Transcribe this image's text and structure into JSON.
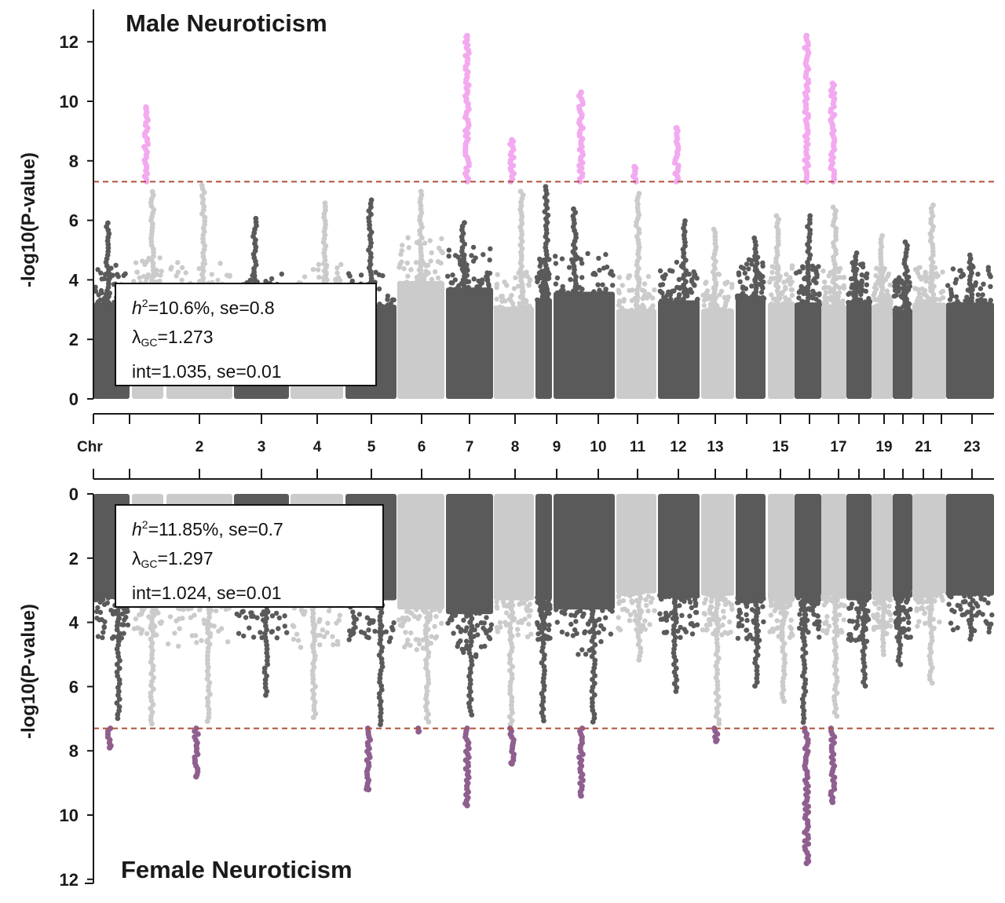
{
  "colors": {
    "dark": "#5a5a5a",
    "light": "#cbcbcb",
    "sig_male": "#f3a9ef",
    "sig_female": "#8f5f8f",
    "threshold": "#b0513a",
    "axis": "#1a1a1a"
  },
  "chart_data": [
    {
      "type": "scatter",
      "title": "Male Neuroticism",
      "ylabel": "-log10(P-value)",
      "ylim": [
        0,
        12.5
      ],
      "yticks": [
        "0",
        "2",
        "4",
        "6",
        "8",
        "10",
        "12"
      ],
      "threshold": 7.3,
      "orientation": "up",
      "stats": {
        "h2": "=10.6%, se=0.8",
        "lambda": "=1.273",
        "int": "int=1.035, se=0.01"
      },
      "chromosomes": [
        {
          "chr": "1",
          "bulk": 4.5,
          "peak": 6.0,
          "hits": []
        },
        {
          "chr": "2",
          "bulk": 4.8,
          "peak": 7.0,
          "hits": [
            9.8
          ]
        },
        {
          "chr": "3",
          "bulk": 4.6,
          "peak": 7.2,
          "hits": []
        },
        {
          "chr": "4",
          "bulk": 4.2,
          "peak": 6.1,
          "hits": []
        },
        {
          "chr": "5",
          "bulk": 4.6,
          "peak": 6.6,
          "hits": []
        },
        {
          "chr": "6",
          "bulk": 4.4,
          "peak": 6.7,
          "hits": []
        },
        {
          "chr": "7",
          "bulk": 5.5,
          "peak": 7.0,
          "hits": []
        },
        {
          "chr": "8",
          "bulk": 5.2,
          "peak": 6.0,
          "hits": [
            12.2
          ]
        },
        {
          "chr": "9",
          "bulk": 4.3,
          "peak": 7.0,
          "hits": [
            8.7
          ]
        },
        {
          "chr": "10",
          "bulk": 4.7,
          "peak": 7.2,
          "hits": []
        },
        {
          "chr": "11",
          "bulk": 5.0,
          "peak": 6.4,
          "hits": [
            10.3
          ]
        },
        {
          "chr": "12",
          "bulk": 4.2,
          "peak": 7.0,
          "hits": [
            7.8
          ]
        },
        {
          "chr": "13",
          "bulk": 4.6,
          "peak": 6.0,
          "hits": [
            9.1
          ]
        },
        {
          "chr": "14",
          "bulk": 4.2,
          "peak": 5.8,
          "hits": []
        },
        {
          "chr": "15",
          "bulk": 4.8,
          "peak": 5.5,
          "hits": []
        },
        {
          "chr": "16",
          "bulk": 4.5,
          "peak": 6.2,
          "hits": []
        },
        {
          "chr": "17",
          "bulk": 4.5,
          "peak": 6.2,
          "hits": [
            12.2
          ]
        },
        {
          "chr": "18",
          "bulk": 4.4,
          "peak": 6.5,
          "hits": [
            10.6
          ]
        },
        {
          "chr": "19",
          "bulk": 4.6,
          "peak": 5.0,
          "hits": []
        },
        {
          "chr": "20",
          "bulk": 4.4,
          "peak": 5.6,
          "hits": []
        },
        {
          "chr": "21",
          "bulk": 4.1,
          "peak": 5.3,
          "hits": []
        },
        {
          "chr": "22",
          "bulk": 4.5,
          "peak": 6.6,
          "hits": []
        },
        {
          "chr": "23",
          "bulk": 4.5,
          "peak": 4.9,
          "hits": []
        }
      ]
    },
    {
      "type": "scatter",
      "title": "Female Neuroticism",
      "ylabel": "-log10(P-value)",
      "ylim": [
        0,
        12
      ],
      "yticks": [
        "0",
        "2",
        "4",
        "6",
        "8",
        "10",
        "12"
      ],
      "threshold": 7.3,
      "orientation": "down",
      "stats": {
        "h2": "=11.85%, se=0.7",
        "lambda": "=1.297",
        "int": "int=1.024, se=0.01"
      },
      "chromosomes": [
        {
          "chr": "1",
          "bulk": 4.5,
          "peak": 7.0,
          "hits": [
            7.9
          ]
        },
        {
          "chr": "2",
          "bulk": 4.4,
          "peak": 7.2,
          "hits": []
        },
        {
          "chr": "3",
          "bulk": 4.8,
          "peak": 7.2,
          "hits": [
            8.8
          ]
        },
        {
          "chr": "4",
          "bulk": 4.5,
          "peak": 6.3,
          "hits": []
        },
        {
          "chr": "5",
          "bulk": 4.8,
          "peak": 7.0,
          "hits": []
        },
        {
          "chr": "6",
          "bulk": 4.6,
          "peak": 7.2,
          "hits": [
            9.2
          ]
        },
        {
          "chr": "7",
          "bulk": 5.0,
          "peak": 7.2,
          "hits": [
            7.4
          ]
        },
        {
          "chr": "8",
          "bulk": 5.2,
          "peak": 7.0,
          "hits": [
            9.7
          ]
        },
        {
          "chr": "9",
          "bulk": 4.6,
          "peak": 7.2,
          "hits": [
            8.4
          ]
        },
        {
          "chr": "10",
          "bulk": 4.6,
          "peak": 7.1,
          "hits": []
        },
        {
          "chr": "11",
          "bulk": 5.0,
          "peak": 7.2,
          "hits": [
            9.4
          ]
        },
        {
          "chr": "12",
          "bulk": 4.3,
          "peak": 5.2,
          "hits": []
        },
        {
          "chr": "13",
          "bulk": 4.5,
          "peak": 6.2,
          "hits": []
        },
        {
          "chr": "14",
          "bulk": 4.4,
          "peak": 7.2,
          "hits": [
            7.7
          ]
        },
        {
          "chr": "15",
          "bulk": 4.6,
          "peak": 6.0,
          "hits": []
        },
        {
          "chr": "16",
          "bulk": 4.6,
          "peak": 6.5,
          "hits": []
        },
        {
          "chr": "17",
          "bulk": 4.5,
          "peak": 7.2,
          "hits": [
            11.5
          ]
        },
        {
          "chr": "18",
          "bulk": 4.4,
          "peak": 7.0,
          "hits": [
            9.6
          ]
        },
        {
          "chr": "19",
          "bulk": 4.6,
          "peak": 6.1,
          "hits": []
        },
        {
          "chr": "20",
          "bulk": 4.4,
          "peak": 5.1,
          "hits": []
        },
        {
          "chr": "21",
          "bulk": 4.5,
          "peak": 5.4,
          "hits": []
        },
        {
          "chr": "22",
          "bulk": 4.3,
          "peak": 5.9,
          "hits": []
        },
        {
          "chr": "23",
          "bulk": 4.4,
          "peak": 4.6,
          "hits": []
        }
      ]
    }
  ],
  "chr_axis": {
    "label": "Chr",
    "labels": [
      "2",
      "3",
      "4",
      "5",
      "6",
      "7",
      "8",
      "9",
      "10",
      "11",
      "12",
      "13",
      "15",
      "17",
      "19",
      "21",
      "23"
    ]
  }
}
